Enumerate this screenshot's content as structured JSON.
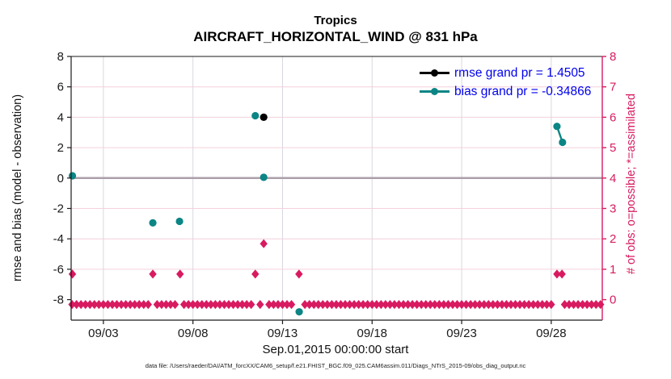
{
  "titles": {
    "line1": "Tropics",
    "line2": "AIRCRAFT_HORIZONTAL_WIND @ 831 hPa"
  },
  "legend": {
    "rows": [
      {
        "label": "rmse grand pr = 1.4505",
        "color": "#000000"
      },
      {
        "label": "bias grand pr = -0.34866",
        "color": "#0c8585"
      }
    ],
    "text_color": "#0000ee"
  },
  "footer": {
    "text": "data file: /Users/raeder/DAI/ATM_forcXX/CAM6_setup/f.e21.FHIST_BGC.f09_025.CAM6assim.011/Diags_NTrS_2015-09/obs_diag_output.nc"
  },
  "colors": {
    "crimson": "#d81b60",
    "teal": "#0c8585",
    "black": "#1a1a1a",
    "grid_pink": "#f3d0dc",
    "grid_gray": "#d9d7de",
    "zero_line": "#ab9fa9",
    "legend_blue": "#0000ee"
  },
  "chart_data": {
    "type": "line",
    "title": "Tropics",
    "subtitle": "AIRCRAFT_HORIZONTAL_WIND @ 831 hPa",
    "xlabel": "Sep.01,2015 00:00:00 start",
    "ylabel_left": "rmse and bias (model - observation)",
    "ylabel_right": "# of obs: o=possible; *=assimilated",
    "ylim": [
      -8,
      8
    ],
    "yticks": [
      8,
      6,
      4,
      2,
      0,
      -2,
      -4,
      -6,
      -8
    ],
    "right_ylim": [
      0,
      8
    ],
    "right_yticks": [
      8,
      7,
      6,
      5,
      4,
      3,
      2,
      1,
      0
    ],
    "xlim": [
      1.2,
      30.85
    ],
    "xticks": [
      {
        "day": 3,
        "label": "09/03"
      },
      {
        "day": 8,
        "label": "09/08"
      },
      {
        "day": 13,
        "label": "09/13"
      },
      {
        "day": 18,
        "label": "09/18"
      },
      {
        "day": 23,
        "label": "09/23"
      },
      {
        "day": 28,
        "label": "09/28"
      }
    ],
    "series": [
      {
        "name": "rmse grand pr = 1.4505",
        "color": "#000000",
        "marker": "circle",
        "points": [
          [
            11.95,
            4.0
          ]
        ],
        "line_segments": []
      },
      {
        "name": "bias grand pr = -0.34866",
        "color": "#0c8585",
        "marker": "circle",
        "points": [
          [
            1.27,
            0.15
          ],
          [
            5.76,
            -2.95
          ],
          [
            7.25,
            -2.85
          ],
          [
            11.48,
            4.1
          ],
          [
            11.95,
            0.05
          ],
          [
            13.93,
            -8.8
          ],
          [
            28.32,
            3.4
          ],
          [
            28.63,
            2.35
          ]
        ],
        "line_segments": [
          [
            [
              28.32,
              3.4
            ],
            [
              28.63,
              2.35
            ]
          ]
        ]
      }
    ],
    "obs_counts": {
      "axis": "right",
      "color": "#d81b60",
      "marker": "diamond",
      "nonzero": [
        [
          1.27,
          1
        ],
        [
          5.76,
          1
        ],
        [
          7.28,
          1
        ],
        [
          11.48,
          1
        ],
        [
          11.95,
          2
        ],
        [
          13.92,
          1
        ],
        [
          28.32,
          1
        ],
        [
          28.6,
          1
        ]
      ],
      "zero_row": {
        "start": 1.25,
        "end": 30.75,
        "step": 0.25,
        "skip": [
          5.75,
          7.25,
          11.5,
          12.0,
          13.75,
          14.0,
          28.25,
          28.5
        ]
      }
    }
  }
}
